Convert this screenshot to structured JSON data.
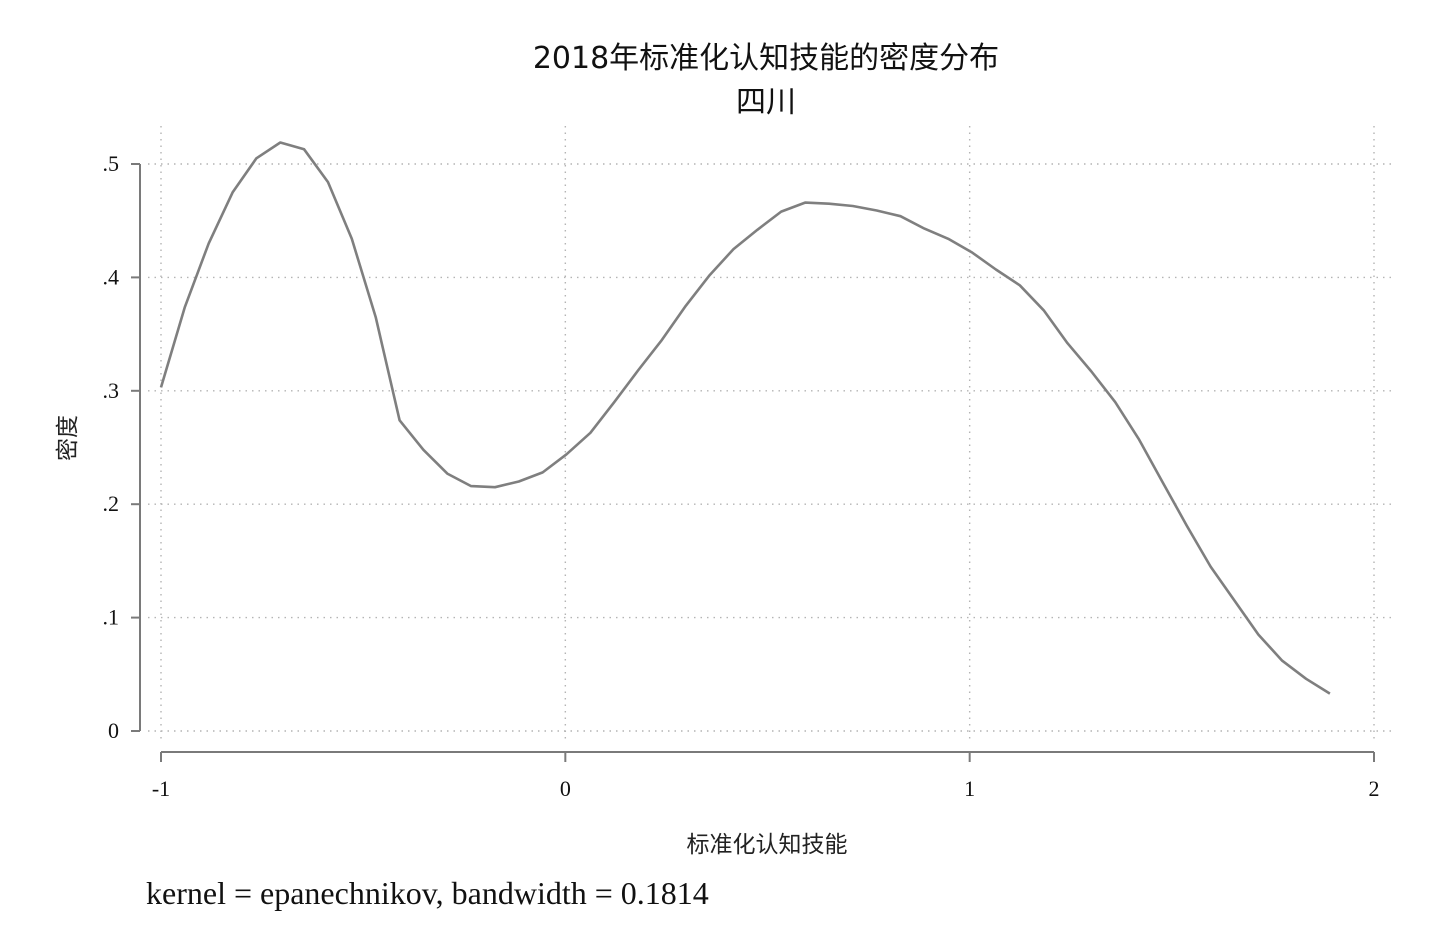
{
  "chart_data": {
    "type": "line",
    "title": "2018年标准化认知技能的密度分布",
    "subtitle": "四川",
    "xlabel": "标准化认知技能",
    "ylabel": "密度",
    "note": "kernel = epanechnikov, bandwidth = 0.1814",
    "xlim": [
      -1,
      2
    ],
    "ylim": [
      0,
      0.5
    ],
    "x_ticks": [
      -1,
      0,
      1,
      2
    ],
    "x_tick_labels": [
      "-1",
      "0",
      "1",
      "2"
    ],
    "y_ticks": [
      0,
      0.1,
      0.2,
      0.3,
      0.4,
      0.5
    ],
    "y_tick_labels": [
      "0",
      ".1",
      ".2",
      ".3",
      ".4",
      ".5"
    ],
    "grid": true,
    "series": [
      {
        "name": "density",
        "color": "#7f7f7f",
        "x": [
          -1.0,
          -0.941,
          -0.882,
          -0.823,
          -0.764,
          -0.705,
          -0.646,
          -0.587,
          -0.528,
          -0.469,
          -0.41,
          -0.351,
          -0.292,
          -0.233,
          -0.174,
          -0.115,
          -0.056,
          0.003,
          0.062,
          0.121,
          0.18,
          0.239,
          0.298,
          0.357,
          0.416,
          0.475,
          0.534,
          0.593,
          0.652,
          0.711,
          0.77,
          0.829,
          0.888,
          0.947,
          1.006,
          1.065,
          1.124,
          1.183,
          1.242,
          1.301,
          1.36,
          1.419,
          1.478,
          1.537,
          1.596,
          1.655,
          1.714,
          1.773,
          1.832,
          1.891
        ],
        "y": [
          0.303,
          0.374,
          0.43,
          0.475,
          0.505,
          0.519,
          0.513,
          0.484,
          0.434,
          0.365,
          0.274,
          0.248,
          0.227,
          0.216,
          0.215,
          0.22,
          0.228,
          0.244,
          0.263,
          0.29,
          0.318,
          0.345,
          0.375,
          0.402,
          0.425,
          0.442,
          0.458,
          0.466,
          0.465,
          0.463,
          0.459,
          0.454,
          0.443,
          0.434,
          0.422,
          0.407,
          0.393,
          0.371,
          0.342,
          0.317,
          0.29,
          0.257,
          0.219,
          0.181,
          0.145,
          0.115,
          0.085,
          0.062,
          0.046,
          0.033
        ]
      }
    ]
  }
}
